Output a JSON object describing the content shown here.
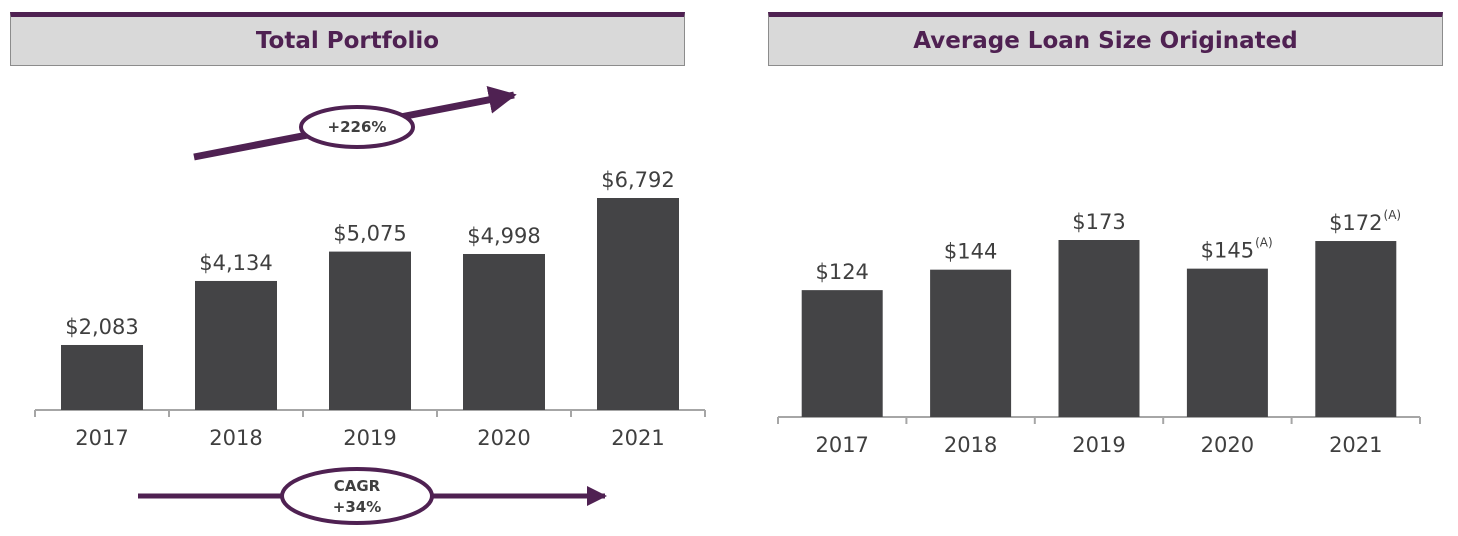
{
  "colors": {
    "accent": "#4f2152",
    "bar": "#444446",
    "axis": "#a6a6a6",
    "text": "#3f3f3f"
  },
  "chart_data": [
    {
      "type": "bar",
      "title": "Total Portfolio",
      "categories": [
        "2017",
        "2018",
        "2019",
        "2020",
        "2021"
      ],
      "values": [
        2083,
        4134,
        5075,
        4998,
        6792
      ],
      "labels": [
        "$2,083",
        "$4,134",
        "$5,075",
        "$4,998",
        "$6,792"
      ],
      "footnotes": [
        "",
        "",
        "",
        "",
        ""
      ],
      "growth_label": "+226%",
      "cagr_label_line1": "CAGR",
      "cagr_label_line2": "+34%"
    },
    {
      "type": "bar",
      "title": "Average Loan Size Originated",
      "categories": [
        "2017",
        "2018",
        "2019",
        "2020",
        "2021"
      ],
      "values": [
        124,
        144,
        173,
        145,
        172
      ],
      "labels": [
        "$124",
        "$144",
        "$173",
        "$145",
        "$172"
      ],
      "footnotes": [
        "",
        "",
        "",
        "(A)",
        "(A)"
      ]
    }
  ]
}
